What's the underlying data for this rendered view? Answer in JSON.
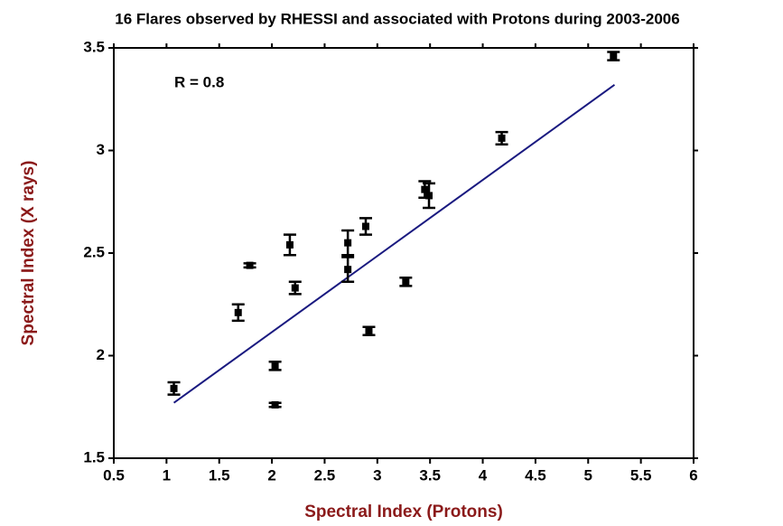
{
  "chart_data": {
    "type": "scatter",
    "title": "16 Flares observed by RHESSI and associated with Protons during 2003-2006",
    "xlabel": "Spectral Index (Protons)",
    "ylabel": "Spectral Index (X rays)",
    "annotation": "R = 0.8",
    "x": [
      1.07,
      1.68,
      1.79,
      2.03,
      2.03,
      2.17,
      2.22,
      2.72,
      2.72,
      2.89,
      2.92,
      3.27,
      3.45,
      3.49,
      4.18,
      5.24
    ],
    "values": [
      1.84,
      2.21,
      2.44,
      1.95,
      1.76,
      2.54,
      2.33,
      2.55,
      2.42,
      2.63,
      2.12,
      2.36,
      2.81,
      2.78,
      3.06,
      3.46
    ],
    "errors": [
      0.03,
      0.04,
      0.01,
      0.02,
      0.01,
      0.05,
      0.03,
      0.06,
      0.06,
      0.04,
      0.02,
      0.02,
      0.04,
      0.06,
      0.03,
      0.02
    ],
    "color": "#000000",
    "fit": {
      "x": [
        1.07,
        5.25
      ],
      "values": [
        1.77,
        3.32
      ],
      "color": "#1a1a80"
    },
    "xlim": [
      0.5,
      6.0
    ],
    "xticks": [
      0.5,
      1.0,
      1.5,
      2.0,
      2.5,
      3.0,
      3.5,
      4.0,
      4.5,
      5.0,
      5.5,
      6.0
    ],
    "ylim": [
      1.5,
      3.5
    ],
    "yticks": [
      1.5,
      2.0,
      2.5,
      3.0,
      3.5
    ],
    "grid": false
  }
}
